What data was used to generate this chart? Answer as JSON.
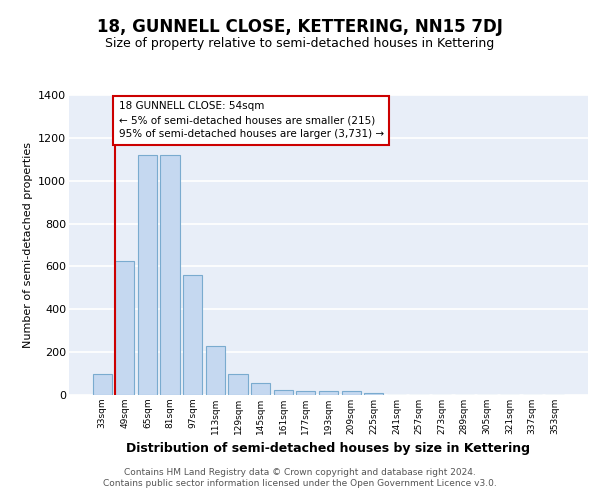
{
  "title": "18, GUNNELL CLOSE, KETTERING, NN15 7DJ",
  "subtitle": "Size of property relative to semi-detached houses in Kettering",
  "xlabel": "Distribution of semi-detached houses by size in Kettering",
  "ylabel": "Number of semi-detached properties",
  "categories": [
    "33sqm",
    "49sqm",
    "65sqm",
    "81sqm",
    "97sqm",
    "113sqm",
    "129sqm",
    "145sqm",
    "161sqm",
    "177sqm",
    "193sqm",
    "209sqm",
    "225sqm",
    "241sqm",
    "257sqm",
    "273sqm",
    "289sqm",
    "305sqm",
    "321sqm",
    "337sqm",
    "353sqm"
  ],
  "values": [
    100,
    625,
    1120,
    1120,
    560,
    230,
    100,
    55,
    25,
    20,
    20,
    20,
    10,
    0,
    0,
    0,
    0,
    0,
    0,
    0,
    0
  ],
  "bar_color": "#c5d8f0",
  "bar_edge_color": "#7aabcf",
  "fig_bg_color": "#ffffff",
  "plot_bg_color": "#e8eef8",
  "grid_color": "#ffffff",
  "annotation_text": "18 GUNNELL CLOSE: 54sqm\n← 5% of semi-detached houses are smaller (215)\n95% of semi-detached houses are larger (3,731) →",
  "annotation_box_color": "#ffffff",
  "annotation_box_edge": "#cc0000",
  "vline_color": "#cc0000",
  "ylim": [
    0,
    1400
  ],
  "yticks": [
    0,
    200,
    400,
    600,
    800,
    1000,
    1200,
    1400
  ],
  "title_fontsize": 12,
  "subtitle_fontsize": 9,
  "xlabel_fontsize": 9,
  "ylabel_fontsize": 8,
  "footer": "Contains HM Land Registry data © Crown copyright and database right 2024.\nContains public sector information licensed under the Open Government Licence v3.0."
}
